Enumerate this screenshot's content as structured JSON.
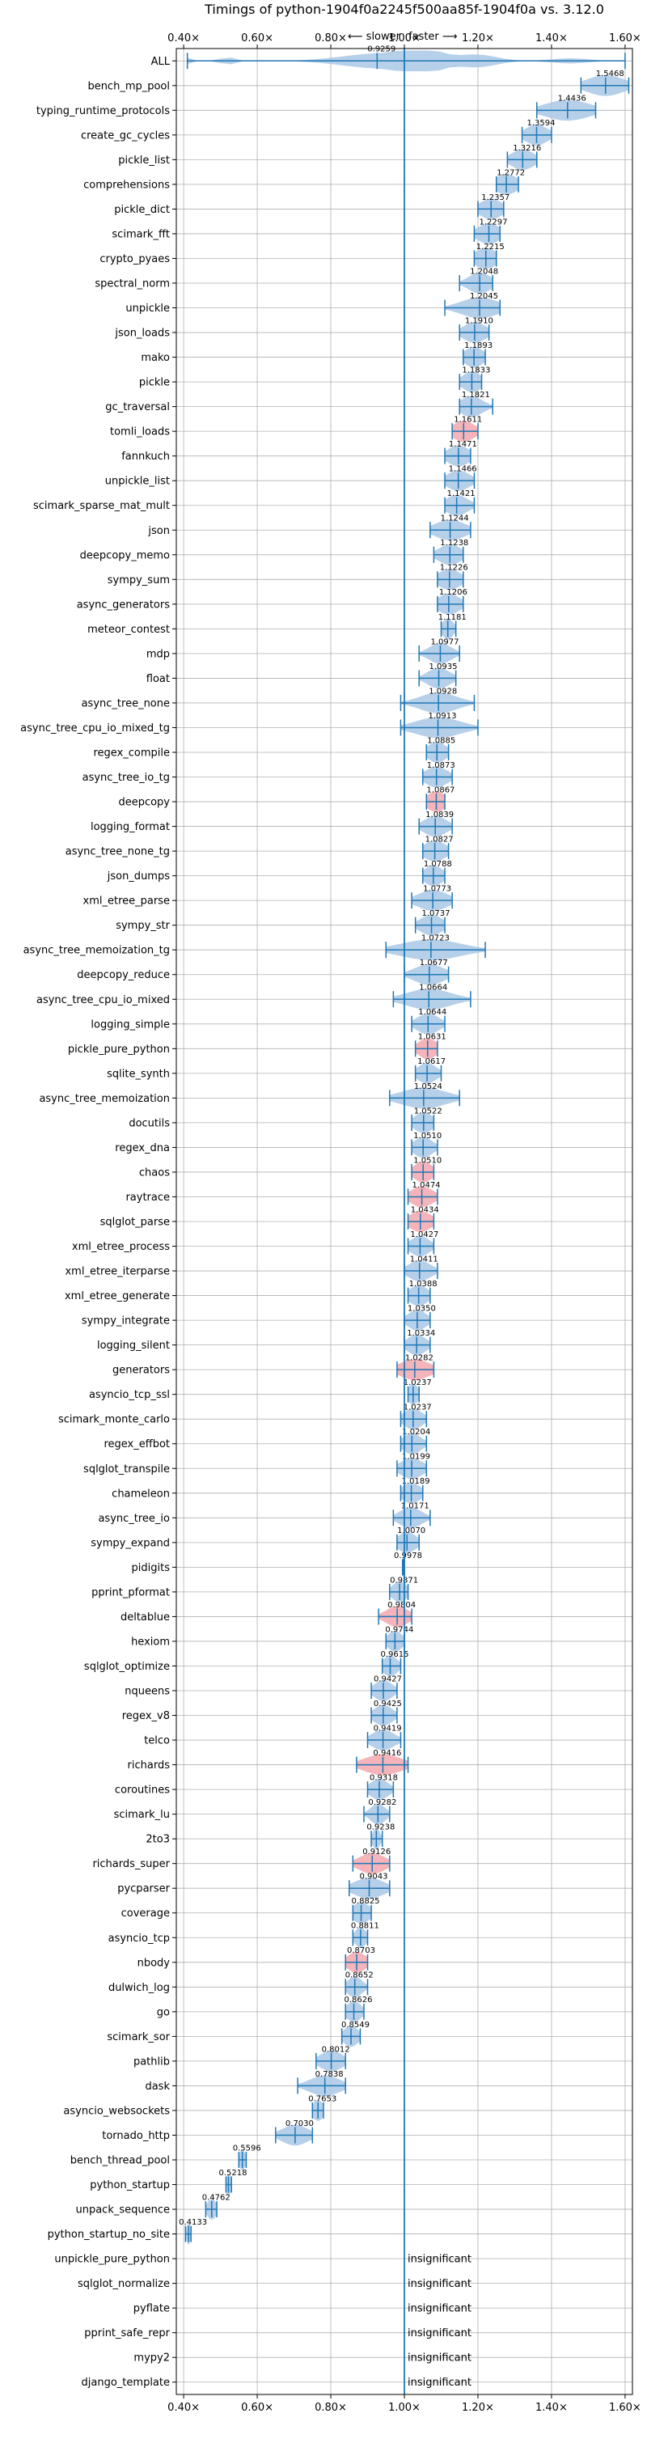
{
  "chart_data": {
    "type": "violin",
    "title": "Timings of python-1904f0a2245f500aa85f-1904f0a vs. 3.12.0",
    "hint_slower": "⟵ slower",
    "hint_faster": "faster ⟶",
    "xlim": [
      0.38,
      1.62
    ],
    "reference_x": 1.0,
    "grid": true,
    "xticks": [
      0.4,
      0.6,
      0.8,
      1.0,
      1.2,
      1.4,
      1.6
    ],
    "xtick_labels": [
      "0.40×",
      "0.60×",
      "0.80×",
      "1.00×",
      "1.20×",
      "1.40×",
      "1.60×"
    ],
    "colors": {
      "normal": "#a9c8e6",
      "highlight": "#f2a7ae",
      "line": "#1f77b4",
      "axis": "#000000",
      "grid": "#b0b0b0"
    },
    "insignificant_text": "insignificant",
    "benchmarks": [
      {
        "name": "ALL",
        "value": 0.9259,
        "label": "0.9259",
        "spread": 0.12,
        "range": [
          0.41,
          1.6
        ]
      },
      {
        "name": "bench_mp_pool",
        "value": 1.5468,
        "label": "1.5468",
        "spread": 0.05,
        "range": [
          1.48,
          1.61
        ]
      },
      {
        "name": "typing_runtime_protocols",
        "value": 1.4436,
        "label": "1.4436",
        "spread": 0.06,
        "range": [
          1.36,
          1.52
        ]
      },
      {
        "name": "create_gc_cycles",
        "value": 1.3594,
        "label": "1.3594",
        "spread": 0.03,
        "range": [
          1.32,
          1.4
        ]
      },
      {
        "name": "pickle_list",
        "value": 1.3216,
        "label": "1.3216",
        "spread": 0.03,
        "range": [
          1.28,
          1.36
        ]
      },
      {
        "name": "comprehensions",
        "value": 1.2772,
        "label": "1.2772",
        "spread": 0.03,
        "range": [
          1.25,
          1.31
        ]
      },
      {
        "name": "pickle_dict",
        "value": 1.2357,
        "label": "1.2357",
        "spread": 0.03,
        "range": [
          1.2,
          1.27
        ]
      },
      {
        "name": "scimark_fft",
        "value": 1.2297,
        "label": "1.2297",
        "spread": 0.03,
        "range": [
          1.19,
          1.26
        ]
      },
      {
        "name": "crypto_pyaes",
        "value": 1.2215,
        "label": "1.2215",
        "spread": 0.03,
        "range": [
          1.19,
          1.25
        ]
      },
      {
        "name": "spectral_norm",
        "value": 1.2048,
        "label": "1.2048",
        "spread": 0.03,
        "range": [
          1.15,
          1.24
        ]
      },
      {
        "name": "unpickle",
        "value": 1.2045,
        "label": "1.2045",
        "spread": 0.05,
        "range": [
          1.11,
          1.26
        ]
      },
      {
        "name": "json_loads",
        "value": 1.191,
        "label": "1.1910",
        "spread": 0.03,
        "range": [
          1.15,
          1.23
        ]
      },
      {
        "name": "mako",
        "value": 1.1893,
        "label": "1.1893",
        "spread": 0.025,
        "range": [
          1.16,
          1.22
        ]
      },
      {
        "name": "pickle",
        "value": 1.1833,
        "label": "1.1833",
        "spread": 0.025,
        "range": [
          1.15,
          1.21
        ]
      },
      {
        "name": "gc_traversal",
        "value": 1.1821,
        "label": "1.1821",
        "spread": 0.03,
        "range": [
          1.15,
          1.24
        ]
      },
      {
        "name": "tomli_loads",
        "value": 1.1611,
        "label": "1.1611",
        "spread": 0.03,
        "range": [
          1.13,
          1.2
        ],
        "highlight": true
      },
      {
        "name": "fannkuch",
        "value": 1.1471,
        "label": "1.1471",
        "spread": 0.03,
        "range": [
          1.11,
          1.18
        ]
      },
      {
        "name": "unpickle_list",
        "value": 1.1466,
        "label": "1.1466",
        "spread": 0.03,
        "range": [
          1.11,
          1.19
        ]
      },
      {
        "name": "scimark_sparse_mat_mult",
        "value": 1.1421,
        "label": "1.1421",
        "spread": 0.03,
        "range": [
          1.11,
          1.19
        ]
      },
      {
        "name": "json",
        "value": 1.1244,
        "label": "1.1244",
        "spread": 0.04,
        "range": [
          1.07,
          1.18
        ]
      },
      {
        "name": "deepcopy_memo",
        "value": 1.1238,
        "label": "1.1238",
        "spread": 0.03,
        "range": [
          1.08,
          1.16
        ]
      },
      {
        "name": "sympy_sum",
        "value": 1.1226,
        "label": "1.1226",
        "spread": 0.03,
        "range": [
          1.09,
          1.16
        ]
      },
      {
        "name": "async_generators",
        "value": 1.1206,
        "label": "1.1206",
        "spread": 0.03,
        "range": [
          1.09,
          1.16
        ]
      },
      {
        "name": "meteor_contest",
        "value": 1.1181,
        "label": "1.1181",
        "spread": 0.015,
        "range": [
          1.1,
          1.14
        ]
      },
      {
        "name": "mdp",
        "value": 1.0977,
        "label": "1.0977",
        "spread": 0.03,
        "range": [
          1.04,
          1.15
        ]
      },
      {
        "name": "float",
        "value": 1.0935,
        "label": "1.0935",
        "spread": 0.03,
        "range": [
          1.04,
          1.14
        ]
      },
      {
        "name": "async_tree_none",
        "value": 1.0928,
        "label": "1.0928",
        "spread": 0.05,
        "range": [
          0.99,
          1.19
        ]
      },
      {
        "name": "async_tree_cpu_io_mixed_tg",
        "value": 1.0913,
        "label": "1.0913",
        "spread": 0.06,
        "range": [
          0.99,
          1.2
        ]
      },
      {
        "name": "regex_compile",
        "value": 1.0885,
        "label": "1.0885",
        "spread": 0.025,
        "range": [
          1.06,
          1.12
        ]
      },
      {
        "name": "async_tree_io_tg",
        "value": 1.0873,
        "label": "1.0873",
        "spread": 0.03,
        "range": [
          1.05,
          1.13
        ]
      },
      {
        "name": "deepcopy",
        "value": 1.0867,
        "label": "1.0867",
        "spread": 0.025,
        "range": [
          1.06,
          1.11
        ],
        "highlight": true
      },
      {
        "name": "logging_format",
        "value": 1.0839,
        "label": "1.0839",
        "spread": 0.03,
        "range": [
          1.04,
          1.13
        ]
      },
      {
        "name": "async_tree_none_tg",
        "value": 1.0827,
        "label": "1.0827",
        "spread": 0.03,
        "range": [
          1.05,
          1.12
        ]
      },
      {
        "name": "json_dumps",
        "value": 1.0788,
        "label": "1.0788",
        "spread": 0.025,
        "range": [
          1.05,
          1.11
        ]
      },
      {
        "name": "xml_etree_parse",
        "value": 1.0773,
        "label": "1.0773",
        "spread": 0.04,
        "range": [
          1.02,
          1.13
        ]
      },
      {
        "name": "sympy_str",
        "value": 1.0737,
        "label": "1.0737",
        "spread": 0.03,
        "range": [
          1.03,
          1.11
        ]
      },
      {
        "name": "async_tree_memoization_tg",
        "value": 1.0723,
        "label": "1.0723",
        "spread": 0.08,
        "range": [
          0.95,
          1.22
        ]
      },
      {
        "name": "deepcopy_reduce",
        "value": 1.0677,
        "label": "1.0677",
        "spread": 0.04,
        "range": [
          1.0,
          1.12
        ]
      },
      {
        "name": "async_tree_cpu_io_mixed",
        "value": 1.0664,
        "label": "1.0664",
        "spread": 0.06,
        "range": [
          0.97,
          1.18
        ]
      },
      {
        "name": "logging_simple",
        "value": 1.0644,
        "label": "1.0644",
        "spread": 0.03,
        "range": [
          1.02,
          1.11
        ]
      },
      {
        "name": "pickle_pure_python",
        "value": 1.0631,
        "label": "1.0631",
        "spread": 0.025,
        "range": [
          1.03,
          1.09
        ],
        "highlight": true
      },
      {
        "name": "sqlite_synth",
        "value": 1.0617,
        "label": "1.0617",
        "spread": 0.025,
        "range": [
          1.03,
          1.1
        ]
      },
      {
        "name": "async_tree_memoization",
        "value": 1.0524,
        "label": "1.0524",
        "spread": 0.06,
        "range": [
          0.96,
          1.15
        ]
      },
      {
        "name": "docutils",
        "value": 1.0522,
        "label": "1.0522",
        "spread": 0.025,
        "range": [
          1.02,
          1.08
        ]
      },
      {
        "name": "regex_dna",
        "value": 1.051,
        "label": "1.0510",
        "spread": 0.025,
        "range": [
          1.02,
          1.09
        ]
      },
      {
        "name": "chaos",
        "value": 1.051,
        "label": "1.0510",
        "spread": 0.025,
        "range": [
          1.02,
          1.08
        ],
        "highlight": true
      },
      {
        "name": "raytrace",
        "value": 1.0474,
        "label": "1.0474",
        "spread": 0.03,
        "range": [
          1.01,
          1.09
        ],
        "highlight": true
      },
      {
        "name": "sqlglot_parse",
        "value": 1.0434,
        "label": "1.0434",
        "spread": 0.03,
        "range": [
          1.01,
          1.08
        ],
        "highlight": true
      },
      {
        "name": "xml_etree_process",
        "value": 1.0427,
        "label": "1.0427",
        "spread": 0.025,
        "range": [
          1.01,
          1.08
        ]
      },
      {
        "name": "xml_etree_iterparse",
        "value": 1.0411,
        "label": "1.0411",
        "spread": 0.03,
        "range": [
          1.0,
          1.09
        ]
      },
      {
        "name": "xml_etree_generate",
        "value": 1.0388,
        "label": "1.0388",
        "spread": 0.025,
        "range": [
          1.01,
          1.07
        ]
      },
      {
        "name": "sympy_integrate",
        "value": 1.035,
        "label": "1.0350",
        "spread": 0.025,
        "range": [
          1.0,
          1.07
        ]
      },
      {
        "name": "logging_silent",
        "value": 1.0334,
        "label": "1.0334",
        "spread": 0.025,
        "range": [
          1.0,
          1.07
        ]
      },
      {
        "name": "generators",
        "value": 1.0282,
        "label": "1.0282",
        "spread": 0.04,
        "range": [
          0.98,
          1.08
        ],
        "highlight": true
      },
      {
        "name": "asyncio_tcp_ssl",
        "value": 1.0237,
        "label": "1.0237",
        "spread": 0.015,
        "range": [
          1.01,
          1.04
        ]
      },
      {
        "name": "scimark_monte_carlo",
        "value": 1.0237,
        "label": "1.0237",
        "spread": 0.025,
        "range": [
          0.99,
          1.06
        ]
      },
      {
        "name": "regex_effbot",
        "value": 1.0204,
        "label": "1.0204",
        "spread": 0.025,
        "range": [
          0.99,
          1.06
        ]
      },
      {
        "name": "sqlglot_transpile",
        "value": 1.0199,
        "label": "1.0199",
        "spread": 0.03,
        "range": [
          0.98,
          1.06
        ]
      },
      {
        "name": "chameleon",
        "value": 1.0189,
        "label": "1.0189",
        "spread": 0.025,
        "range": [
          0.99,
          1.05
        ]
      },
      {
        "name": "async_tree_io",
        "value": 1.0171,
        "label": "1.0171",
        "spread": 0.03,
        "range": [
          0.97,
          1.07
        ]
      },
      {
        "name": "sympy_expand",
        "value": 1.007,
        "label": "1.0070",
        "spread": 0.025,
        "range": [
          0.98,
          1.04
        ]
      },
      {
        "name": "pidigits",
        "value": 0.9978,
        "label": "0.9978",
        "spread": 0.005,
        "range": [
          0.995,
          1.0
        ]
      },
      {
        "name": "pprint_pformat",
        "value": 0.9871,
        "label": "0.9871",
        "spread": 0.02,
        "range": [
          0.96,
          1.01
        ]
      },
      {
        "name": "deltablue",
        "value": 0.9804,
        "label": "0.9804",
        "spread": 0.03,
        "range": [
          0.93,
          1.02
        ],
        "highlight": true
      },
      {
        "name": "hexiom",
        "value": 0.9744,
        "label": "0.9744",
        "spread": 0.02,
        "range": [
          0.95,
          1.0
        ]
      },
      {
        "name": "sqlglot_optimize",
        "value": 0.9615,
        "label": "0.9615",
        "spread": 0.02,
        "range": [
          0.94,
          0.99
        ]
      },
      {
        "name": "nqueens",
        "value": 0.9427,
        "label": "0.9427",
        "spread": 0.025,
        "range": [
          0.91,
          0.98
        ]
      },
      {
        "name": "regex_v8",
        "value": 0.9425,
        "label": "0.9425",
        "spread": 0.025,
        "range": [
          0.91,
          0.98
        ]
      },
      {
        "name": "telco",
        "value": 0.9419,
        "label": "0.9419",
        "spread": 0.03,
        "range": [
          0.9,
          0.99
        ]
      },
      {
        "name": "richards",
        "value": 0.9416,
        "label": "0.9416",
        "spread": 0.05,
        "range": [
          0.87,
          1.01
        ],
        "highlight": true
      },
      {
        "name": "coroutines",
        "value": 0.9318,
        "label": "0.9318",
        "spread": 0.025,
        "range": [
          0.9,
          0.97
        ]
      },
      {
        "name": "scimark_lu",
        "value": 0.9282,
        "label": "0.9282",
        "spread": 0.02,
        "range": [
          0.89,
          0.96
        ]
      },
      {
        "name": "2to3",
        "value": 0.9238,
        "label": "0.9238",
        "spread": 0.01,
        "range": [
          0.91,
          0.94
        ]
      },
      {
        "name": "richards_super",
        "value": 0.9126,
        "label": "0.9126",
        "spread": 0.035,
        "range": [
          0.86,
          0.96
        ],
        "highlight": true
      },
      {
        "name": "pycparser",
        "value": 0.9043,
        "label": "0.9043",
        "spread": 0.04,
        "range": [
          0.85,
          0.96
        ]
      },
      {
        "name": "coverage",
        "value": 0.8825,
        "label": "0.8825",
        "spread": 0.025,
        "range": [
          0.86,
          0.91
        ]
      },
      {
        "name": "asyncio_tcp",
        "value": 0.8811,
        "label": "0.8811",
        "spread": 0.015,
        "range": [
          0.86,
          0.9
        ]
      },
      {
        "name": "nbody",
        "value": 0.8703,
        "label": "0.8703",
        "spread": 0.025,
        "range": [
          0.84,
          0.9
        ],
        "highlight": true
      },
      {
        "name": "dulwich_log",
        "value": 0.8652,
        "label": "0.8652",
        "spread": 0.02,
        "range": [
          0.84,
          0.9
        ]
      },
      {
        "name": "go",
        "value": 0.8626,
        "label": "0.8626",
        "spread": 0.02,
        "range": [
          0.84,
          0.89
        ]
      },
      {
        "name": "scimark_sor",
        "value": 0.8549,
        "label": "0.8549",
        "spread": 0.02,
        "range": [
          0.83,
          0.88
        ]
      },
      {
        "name": "pathlib",
        "value": 0.8012,
        "label": "0.8012",
        "spread": 0.03,
        "range": [
          0.76,
          0.84
        ]
      },
      {
        "name": "dask",
        "value": 0.7838,
        "label": "0.7838",
        "spread": 0.04,
        "range": [
          0.71,
          0.84
        ]
      },
      {
        "name": "asyncio_websockets",
        "value": 0.7653,
        "label": "0.7653",
        "spread": 0.015,
        "range": [
          0.75,
          0.78
        ]
      },
      {
        "name": "tornado_http",
        "value": 0.703,
        "label": "0.7030",
        "spread": 0.035,
        "range": [
          0.65,
          0.75
        ]
      },
      {
        "name": "bench_thread_pool",
        "value": 0.5596,
        "label": "0.5596",
        "spread": 0.008,
        "range": [
          0.55,
          0.57
        ]
      },
      {
        "name": "python_startup",
        "value": 0.5218,
        "label": "0.5218",
        "spread": 0.008,
        "range": [
          0.515,
          0.53
        ]
      },
      {
        "name": "unpack_sequence",
        "value": 0.4762,
        "label": "0.4762",
        "spread": 0.012,
        "range": [
          0.46,
          0.49
        ]
      },
      {
        "name": "python_startup_no_site",
        "value": 0.4133,
        "label": "0.4133",
        "spread": 0.006,
        "range": [
          0.405,
          0.42
        ]
      },
      {
        "name": "unpickle_pure_python",
        "insignificant": true
      },
      {
        "name": "sqlglot_normalize",
        "insignificant": true
      },
      {
        "name": "pyflate",
        "insignificant": true
      },
      {
        "name": "pprint_safe_repr",
        "insignificant": true
      },
      {
        "name": "mypy2",
        "insignificant": true
      },
      {
        "name": "django_template",
        "insignificant": true
      }
    ]
  }
}
